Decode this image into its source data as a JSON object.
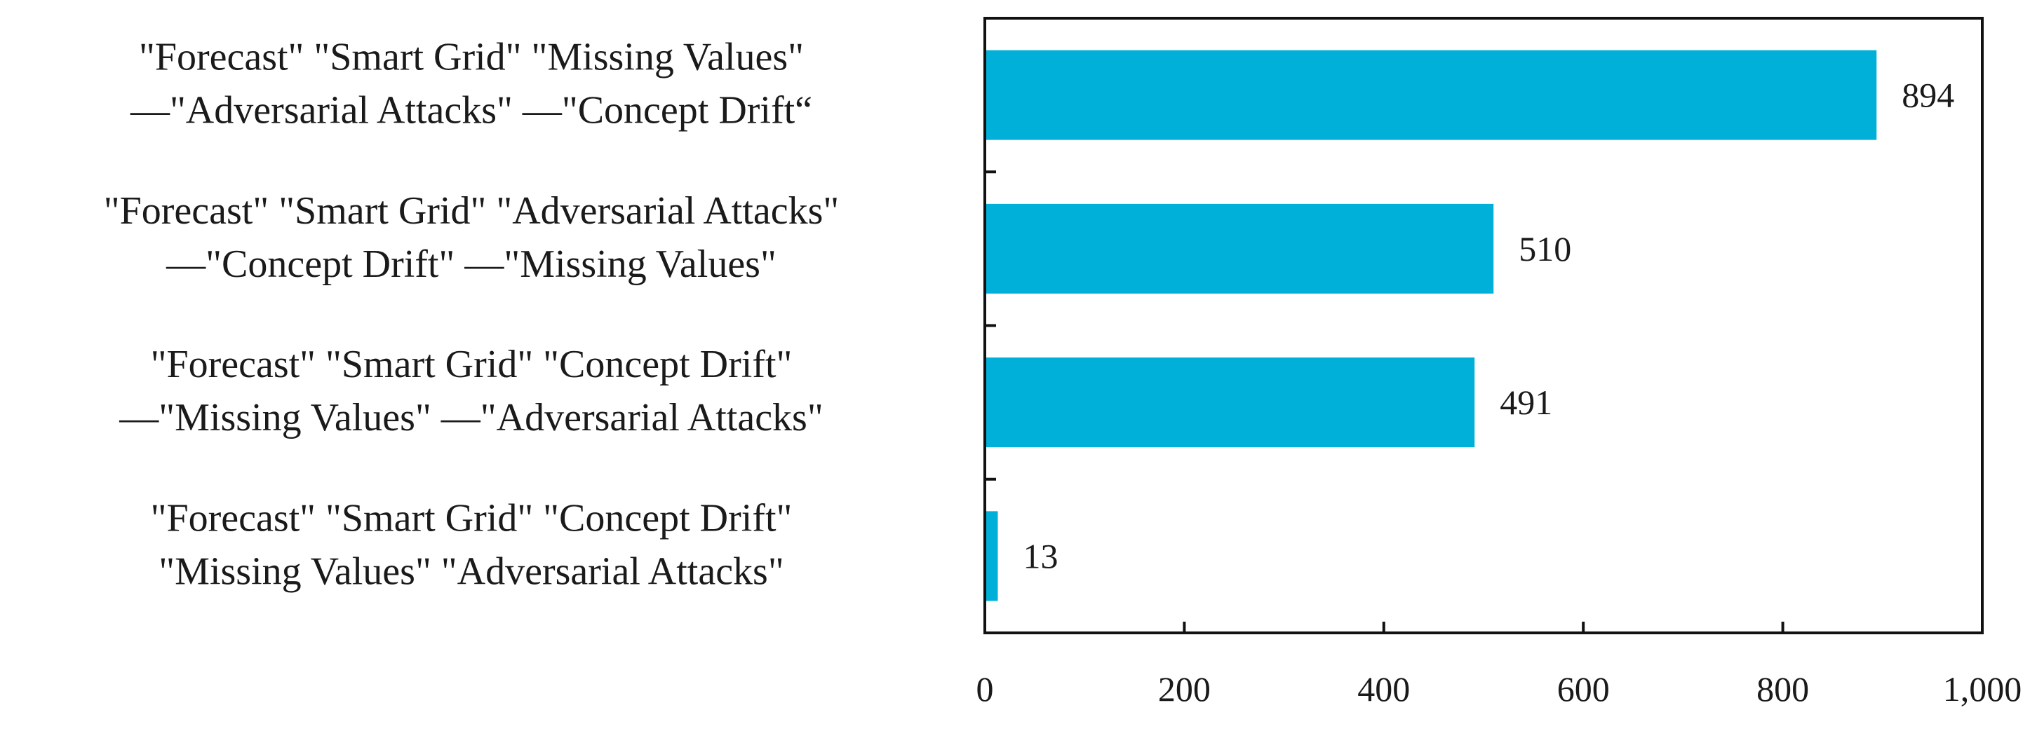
{
  "chart_data": {
    "type": "bar",
    "orientation": "horizontal",
    "title": "",
    "xlabel": "",
    "ylabel": "",
    "xlim": [
      0,
      1000
    ],
    "x_ticks": [
      0,
      200,
      400,
      600,
      800,
      1000
    ],
    "x_tick_labels": [
      "0",
      "200",
      "400",
      "600",
      "800",
      "1,000"
    ],
    "grid": false,
    "legend": "none",
    "bar_color": "#00B0D8",
    "categories": [
      {
        "lines": [
          "\"Forecast\" \"Smart Grid\" \"Missing Values\"",
          "—\"Adversarial Attacks\"  —\"Concept Drift“"
        ],
        "value": 894,
        "value_label": "894"
      },
      {
        "lines": [
          "\"Forecast\" \"Smart Grid\" \"Adversarial Attacks\"",
          "—\"Concept Drift\"  —\"Missing Values\""
        ],
        "value": 510,
        "value_label": "510"
      },
      {
        "lines": [
          "\"Forecast\" \"Smart Grid\" \"Concept Drift\"",
          "—\"Missing Values\"  —\"Adversarial Attacks\""
        ],
        "value": 491,
        "value_label": "491"
      },
      {
        "lines": [
          "\"Forecast\" \"Smart Grid\" \"Concept Drift\"",
          "\"Missing Values\" \"Adversarial Attacks\""
        ],
        "value": 13,
        "value_label": "13"
      }
    ]
  }
}
